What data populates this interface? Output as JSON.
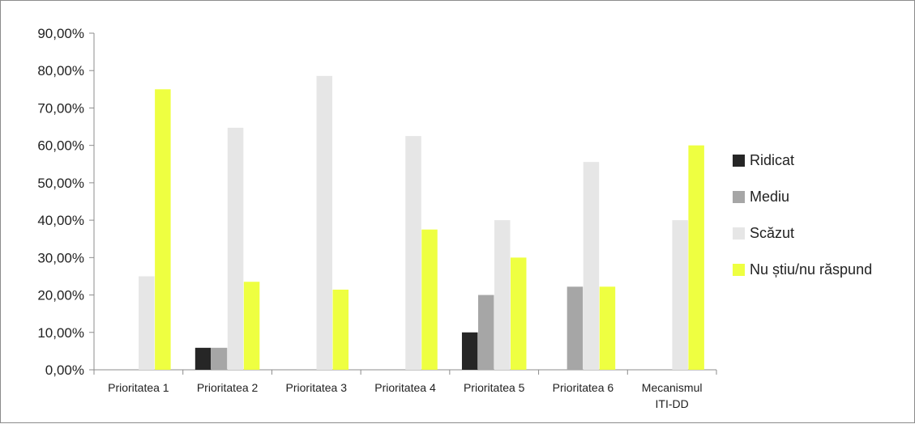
{
  "chart_data": {
    "type": "bar",
    "categories": [
      [
        "Prioritatea 1"
      ],
      [
        "Prioritatea 2"
      ],
      [
        "Prioritatea 3"
      ],
      [
        "Prioritatea 4"
      ],
      [
        "Prioritatea 5"
      ],
      [
        "Prioritatea 6"
      ],
      [
        "Mecanismul",
        "ITI-DD"
      ]
    ],
    "series": [
      {
        "name": "Ridicat",
        "color": "#262626",
        "values": [
          0,
          5.88,
          0,
          0,
          10,
          0,
          0
        ]
      },
      {
        "name": "Mediu",
        "color": "#a6a6a6",
        "values": [
          0,
          5.88,
          0,
          0,
          20,
          22.22,
          0
        ]
      },
      {
        "name": "Scăzut",
        "color": "#e6e6e6",
        "values": [
          25,
          64.71,
          78.57,
          62.5,
          40,
          55.56,
          40
        ]
      },
      {
        "name": "Nu știu/nu răspund",
        "color": "#eeff41",
        "values": [
          75,
          23.53,
          21.43,
          37.5,
          30,
          22.22,
          60
        ]
      }
    ],
    "yticks": [
      "0,00%",
      "10,00%",
      "20,00%",
      "30,00%",
      "40,00%",
      "50,00%",
      "60,00%",
      "70,00%",
      "80,00%",
      "90,00%"
    ],
    "ylim": [
      0,
      90
    ],
    "grid": false,
    "legend_position": "right"
  }
}
